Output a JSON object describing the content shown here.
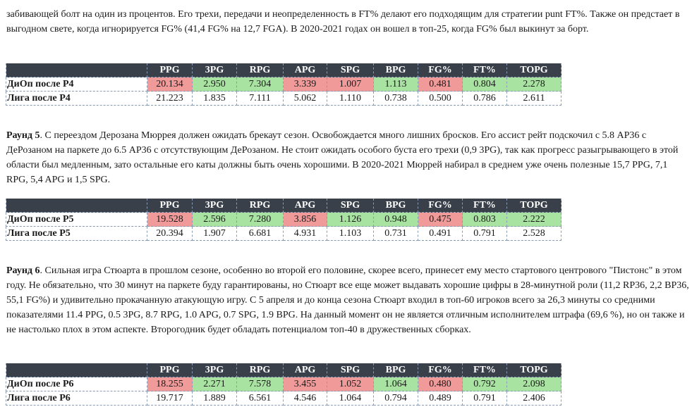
{
  "intro_paragraph": "забивающей болт на один из процентов. Его трехи, передачи и неопределенность в FT% делают его подходящим для стратегии punt FT%. Также он предстает в выгодном свете, когда игнорируется FG% (41,4 FG% на 12,7 FGA). В 2020-2021 годах он вошел в топ-25, когда FG% был выкинут за борт.",
  "columns": [
    "PPG",
    "3PG",
    "RPG",
    "APG",
    "SPG",
    "BPG",
    "FG%",
    "FT%",
    "TOPG"
  ],
  "colors": {
    "header_bg": "#39404a",
    "worse": "#f19a9a",
    "better": "#a9e3a1"
  },
  "tables": [
    {
      "rows": [
        {
          "label": "ДиОп после P4",
          "values": [
            "20.134",
            "2.950",
            "7.304",
            "3.339",
            "1.007",
            "1.113",
            "0.481",
            "0.804",
            "2.278"
          ],
          "status": [
            "red",
            "green",
            "green",
            "red",
            "red",
            "green",
            "red",
            "green",
            "green"
          ]
        },
        {
          "label": "Лига после P4",
          "values": [
            "21.223",
            "1.835",
            "7.111",
            "5.062",
            "1.110",
            "0.738",
            "0.500",
            "0.786",
            "2.611"
          ],
          "status": [
            "plain",
            "plain",
            "plain",
            "plain",
            "plain",
            "plain",
            "plain",
            "plain",
            "plain"
          ]
        }
      ]
    },
    {
      "rows": [
        {
          "label": "ДиОп после P5",
          "values": [
            "19.528",
            "2.596",
            "7.280",
            "3.856",
            "1.126",
            "0.948",
            "0.475",
            "0.803",
            "2.222"
          ],
          "status": [
            "red",
            "green",
            "green",
            "red",
            "green",
            "green",
            "red",
            "green",
            "green"
          ]
        },
        {
          "label": "Лига после P5",
          "values": [
            "20.394",
            "1.907",
            "6.681",
            "4.931",
            "1.103",
            "0.731",
            "0.491",
            "0.791",
            "2.528"
          ],
          "status": [
            "plain",
            "plain",
            "plain",
            "plain",
            "plain",
            "plain",
            "plain",
            "plain",
            "plain"
          ]
        }
      ]
    },
    {
      "rows": [
        {
          "label": "ДиОп после P6",
          "values": [
            "18.255",
            "2.271",
            "7.578",
            "3.455",
            "1.052",
            "1.064",
            "0.480",
            "0.792",
            "2.098"
          ],
          "status": [
            "red",
            "green",
            "green",
            "red",
            "red",
            "green",
            "red",
            "green",
            "green"
          ]
        },
        {
          "label": "Лига после P6",
          "values": [
            "19.717",
            "1.889",
            "6.561",
            "4.546",
            "1.064",
            "0.794",
            "0.489",
            "0.791",
            "2.406"
          ],
          "status": [
            "plain",
            "plain",
            "plain",
            "plain",
            "plain",
            "plain",
            "plain",
            "plain",
            "plain"
          ]
        }
      ]
    }
  ],
  "round5": {
    "lead": "Раунд 5",
    "text": ". С переездом Дерозана Мюррея должен ожидать брекаут сезон. Освобождается много лишних бросков. Его ассист рейт подскочил с 5.8 AP36 с ДеРозаном на паркете до 6.5 AP36 с отсутствующим ДеРозаном. Не стоит ожидать особого буста его трехи (0,9 3PG), так как прогресс разыгрывающего в этой области был медленным, зато остальные его каты должны быть очень хорошими. В 2020-2021 Мюррей набирал в среднем уже очень полезные 15,7 PPG, 7,1 RPG, 5,4 APG и 1,5 SPG."
  },
  "round6": {
    "lead": "Раунд 6",
    "text": ". Сильная игра Стюарта в прошлом сезоне, особенно во второй его половине, скорее всего, принесет ему место стартового центрового \"Пистонс\" в этом году. Не обязательно, что 30 минут на паркете буду гарантированы, но Стюарт все еще может выдавать хорошие цифры в 28-минутной роли (11,2 RP36, 2,2 BP36, 55,1 FG%) и удивительно прокачанную атакующую игру. С 5 апреля и до конца сезона Стюарт входил в топ-60 игроков всего за 26,3 минуты со средними показателями 11.4 PPG, 0.5 3PG, 8.7 RPG, 1.0 APG, 0.7 SPG, 1.9 BPG. На данный момент он не является отличным исполнителем штрафа (69,6 %), но он также и не настолько плох в этом аспекте. Второгодник будет обладать потенциалом топ-40 в дружественных сборках."
  }
}
